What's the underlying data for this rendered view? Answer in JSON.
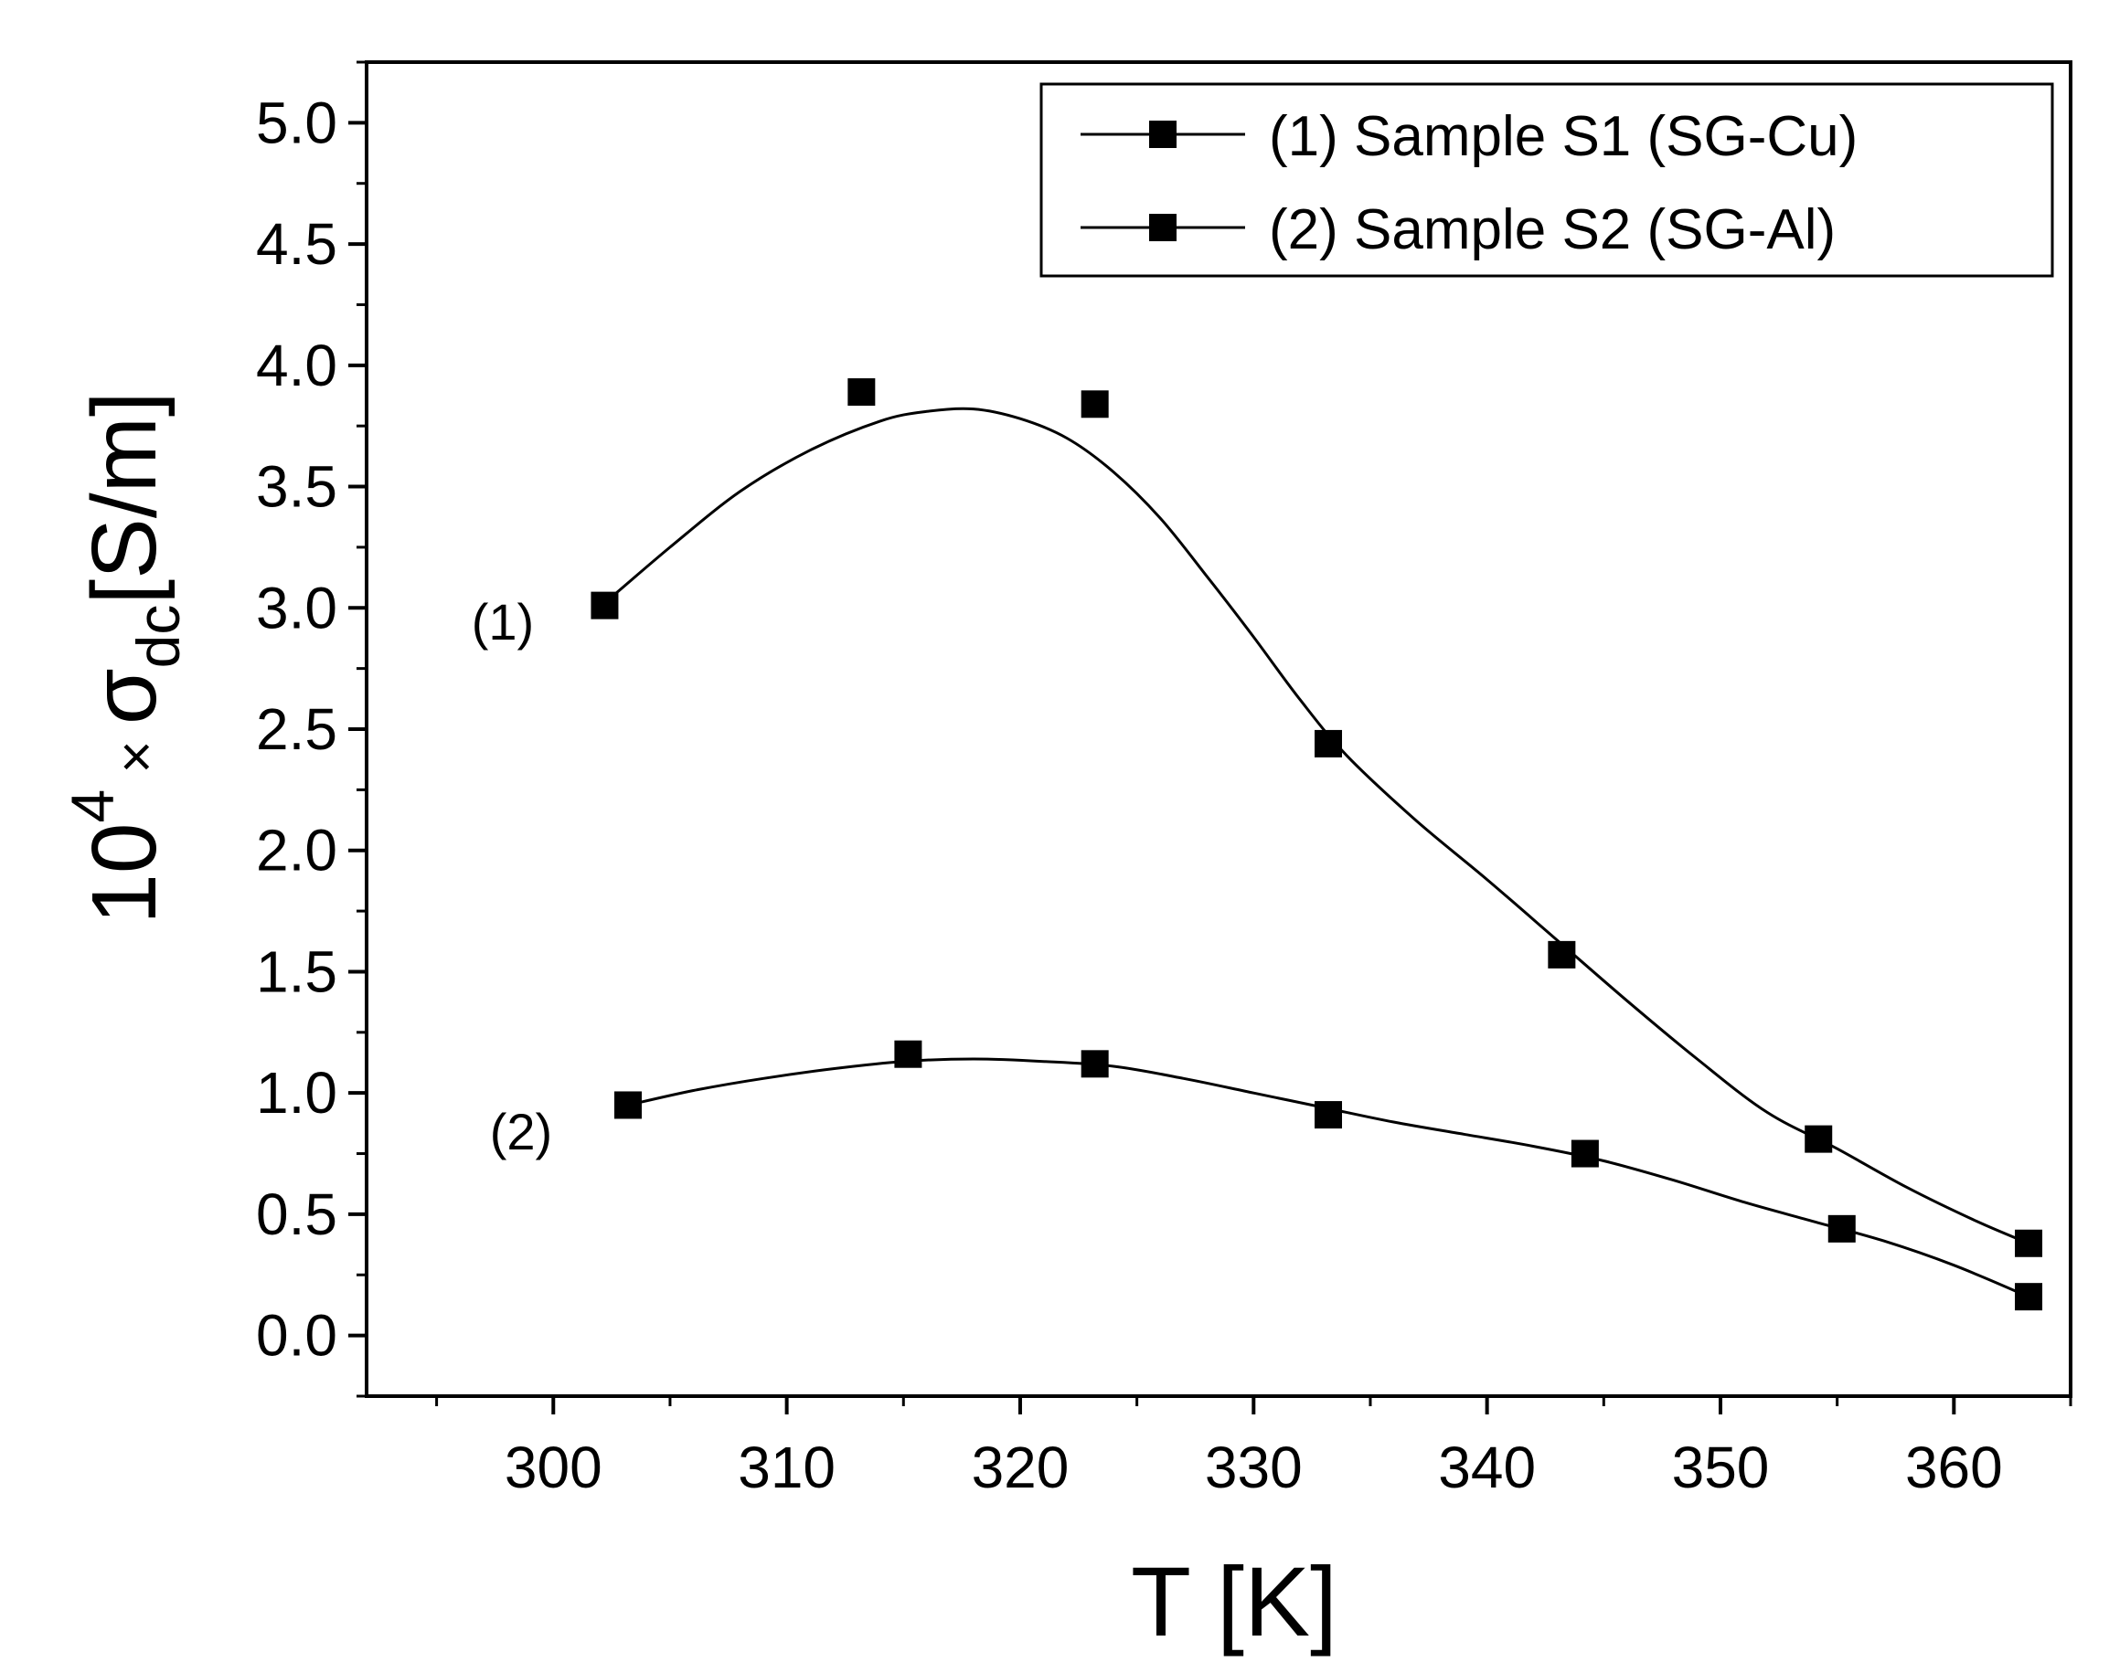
{
  "chart_data": {
    "type": "scatter",
    "title": "",
    "xlabel": "T [K]",
    "ylabel": {
      "base": "10",
      "exponent": "4",
      "times": " × ",
      "sigma": "σ",
      "subscript": "dc",
      "unit": "[S/m]"
    },
    "xlim": [
      292,
      365
    ],
    "ylim": [
      -0.25,
      5.25
    ],
    "x_ticks": [
      300,
      310,
      320,
      330,
      340,
      350,
      360
    ],
    "x_tick_labels": [
      "300",
      "310",
      "320",
      "330",
      "340",
      "350",
      "360"
    ],
    "x_minor_ticks": [
      295,
      305,
      315,
      325,
      335,
      345,
      355,
      365
    ],
    "y_ticks": [
      0.0,
      0.5,
      1.0,
      1.5,
      2.0,
      2.5,
      3.0,
      3.5,
      4.0,
      4.5,
      5.0
    ],
    "y_tick_labels": [
      "0.0",
      "0.5",
      "1.0",
      "1.5",
      "2.0",
      "2.5",
      "3.0",
      "3.5",
      "4.0",
      "4.5",
      "5.0"
    ],
    "y_minor_ticks": [
      -0.25,
      0.25,
      0.75,
      1.25,
      1.75,
      2.25,
      2.75,
      3.25,
      3.75,
      4.25,
      4.75,
      5.25
    ],
    "grid": false,
    "legend_position": "top-right",
    "series": [
      {
        "name": "(1) Sample S1 (SG-Cu)",
        "curve_label": "(1)",
        "marker": "square",
        "color": "#000000",
        "x": [
          302.2,
          313.2,
          323.2,
          333.2,
          343.2,
          354.2,
          363.2
        ],
        "y": [
          3.01,
          3.89,
          3.84,
          2.44,
          1.57,
          0.81,
          0.38
        ],
        "fit_curve": {
          "x": [
            302.2,
            305,
            308,
            311,
            314,
            316,
            318,
            320,
            322,
            324,
            326,
            328,
            330,
            332,
            334,
            337,
            340,
            343,
            346,
            349,
            352,
            355,
            358,
            361,
            363.2
          ],
          "y": [
            3.02,
            3.25,
            3.48,
            3.65,
            3.77,
            3.81,
            3.82,
            3.78,
            3.7,
            3.56,
            3.37,
            3.13,
            2.88,
            2.62,
            2.39,
            2.12,
            1.88,
            1.63,
            1.38,
            1.14,
            0.92,
            0.77,
            0.61,
            0.47,
            0.38
          ]
        }
      },
      {
        "name": "(2) Sample S2 (SG-Al)",
        "curve_label": "(2)",
        "marker": "square",
        "color": "#000000",
        "x": [
          303.2,
          315.2,
          323.2,
          333.2,
          344.2,
          355.2,
          363.2
        ],
        "y": [
          0.95,
          1.16,
          1.12,
          0.91,
          0.75,
          0.44,
          0.16
        ],
        "fit_curve": {
          "x": [
            303.2,
            306,
            309,
            312,
            315,
            318,
            321,
            324,
            327,
            330,
            333,
            336,
            339,
            342,
            345,
            348,
            351,
            354,
            357,
            360,
            363.2
          ],
          "y": [
            0.95,
            1.01,
            1.06,
            1.1,
            1.13,
            1.14,
            1.13,
            1.11,
            1.06,
            1.0,
            0.94,
            0.88,
            0.83,
            0.78,
            0.72,
            0.64,
            0.55,
            0.47,
            0.39,
            0.29,
            0.16
          ]
        }
      }
    ]
  }
}
